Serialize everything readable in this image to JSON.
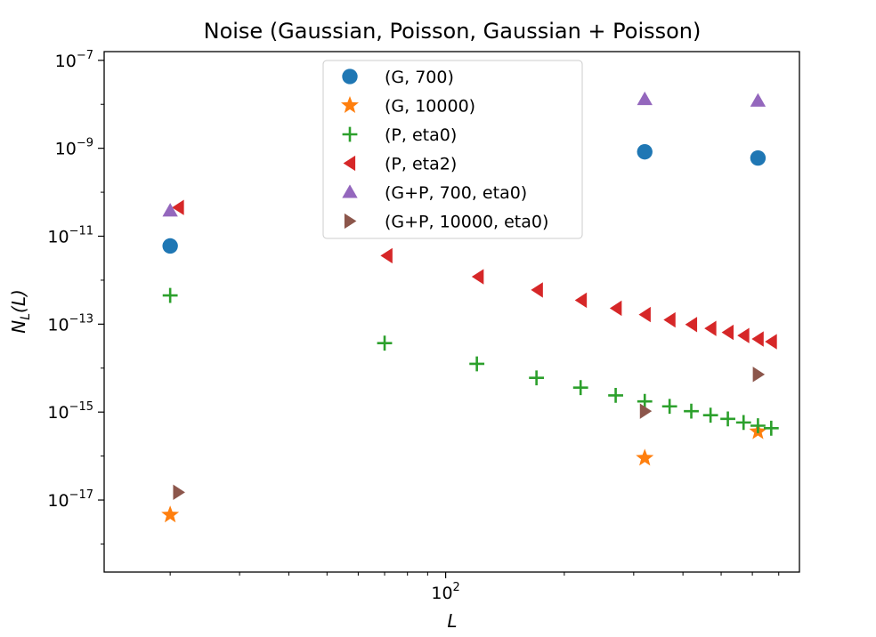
{
  "chart_data": {
    "type": "scatter",
    "title": "Noise (Gaussian, Poisson, Gaussian + Poisson)",
    "xlabel": "L",
    "ylabel": "N_L(L)",
    "xscale": "log",
    "yscale": "log",
    "xlim": [
      13.6,
      790
    ],
    "ylim": [
      2.3e-19,
      1.58e-07
    ],
    "grid": false,
    "legend_position": "top-center",
    "x_ticks": [
      {
        "value": 100,
        "base": "10",
        "exp": "2"
      }
    ],
    "y_ticks": [
      {
        "value": 1e-17,
        "base": "10",
        "exp": "−17"
      },
      {
        "value": 1e-15,
        "base": "10",
        "exp": "−15"
      },
      {
        "value": 1e-13,
        "base": "10",
        "exp": "−13"
      },
      {
        "value": 1e-11,
        "base": "10",
        "exp": "−11"
      },
      {
        "value": 1e-09,
        "base": "10",
        "exp": "−9"
      },
      {
        "value": 1e-07,
        "base": "10",
        "exp": "−7"
      }
    ],
    "series": [
      {
        "name": "(G, 700)",
        "marker": "circle",
        "color": "#1f77b4",
        "x": [
          20,
          320,
          620
        ],
        "y": [
          6e-12,
          8.3e-10,
          6e-10
        ]
      },
      {
        "name": "(G, 10000)",
        "marker": "star",
        "color": "#ff7f0e",
        "x": [
          20,
          320,
          620
        ],
        "y": [
          4.6e-18,
          9e-17,
          3.6e-16
        ]
      },
      {
        "name": "(P, eta0)",
        "marker": "plus",
        "color": "#2ca02c",
        "x": [
          20,
          70,
          120,
          170,
          220,
          270,
          320,
          370,
          420,
          470,
          520,
          570,
          620,
          670
        ],
        "y": [
          4.5e-13,
          3.7e-14,
          1.25e-14,
          6e-15,
          3.6e-15,
          2.4e-15,
          1.75e-15,
          1.35e-15,
          1.05e-15,
          8.5e-16,
          7e-16,
          5.8e-16,
          4.9e-16,
          4.3e-16
        ]
      },
      {
        "name": "(P, eta2)",
        "marker": "triangle-left",
        "color": "#d62728",
        "x": [
          21,
          71,
          121,
          171,
          221,
          271,
          321,
          371,
          421,
          471,
          521,
          571,
          621,
          671
        ],
        "y": [
          4.5e-11,
          3.6e-12,
          1.2e-12,
          6e-13,
          3.5e-13,
          2.3e-13,
          1.65e-13,
          1.25e-13,
          9.8e-14,
          8e-14,
          6.5e-14,
          5.5e-14,
          4.6e-14,
          4e-14
        ]
      },
      {
        "name": "(G+P, 700, eta0)",
        "marker": "triangle-up",
        "color": "#9467bd",
        "x": [
          20,
          320,
          620
        ],
        "y": [
          3.8e-11,
          1.3e-08,
          1.2e-08
        ]
      },
      {
        "name": "(G+P, 10000, eta0)",
        "marker": "triangle-right",
        "color": "#8c564b",
        "x": [
          21,
          321,
          621
        ],
        "y": [
          1.5e-17,
          1.05e-15,
          7.2e-15
        ]
      }
    ]
  }
}
